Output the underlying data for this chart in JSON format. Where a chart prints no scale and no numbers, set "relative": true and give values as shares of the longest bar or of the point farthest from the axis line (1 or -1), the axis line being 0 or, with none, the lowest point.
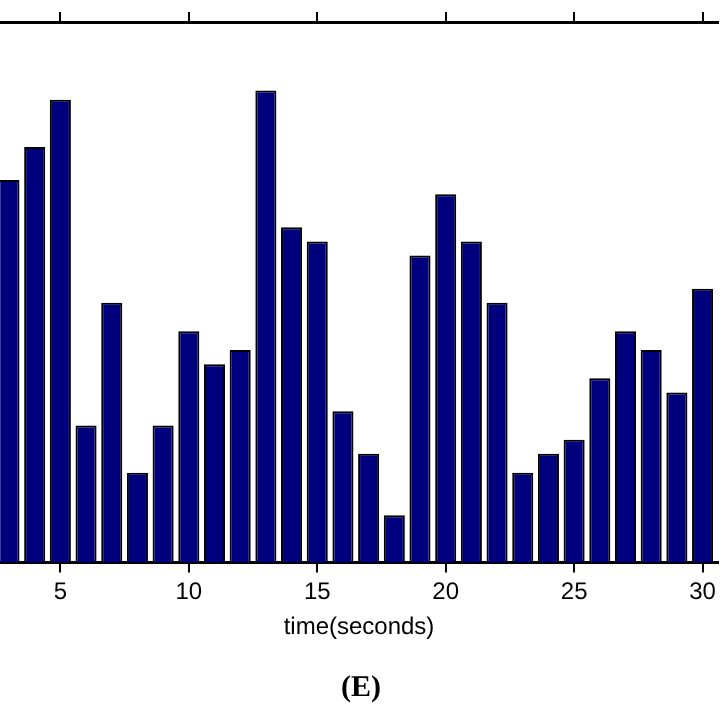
{
  "chart_data": {
    "type": "bar",
    "title": "(E)",
    "xlabel": "time(seconds)",
    "relative": true,
    "x": [
      3,
      4,
      5,
      6,
      7,
      8,
      9,
      10,
      11,
      12,
      13,
      14,
      15,
      16,
      17,
      18,
      19,
      20,
      21,
      22,
      23,
      24,
      25,
      26,
      27,
      28,
      29,
      30
    ],
    "values": [
      0.81,
      0.88,
      0.98,
      0.29,
      0.55,
      0.19,
      0.29,
      0.49,
      0.42,
      0.45,
      1,
      0.71,
      0.68,
      0.32,
      0.23,
      0.1,
      0.65,
      0.78,
      0.68,
      0.55,
      0.19,
      0.23,
      0.26,
      0.39,
      0.49,
      0.45,
      0.36,
      0.58
    ],
    "color": "#00007f",
    "xlim": [
      2.65,
      30.6
    ],
    "xticks": [
      5,
      10,
      15,
      20,
      25,
      30
    ],
    "grid": false,
    "legend": false
  }
}
